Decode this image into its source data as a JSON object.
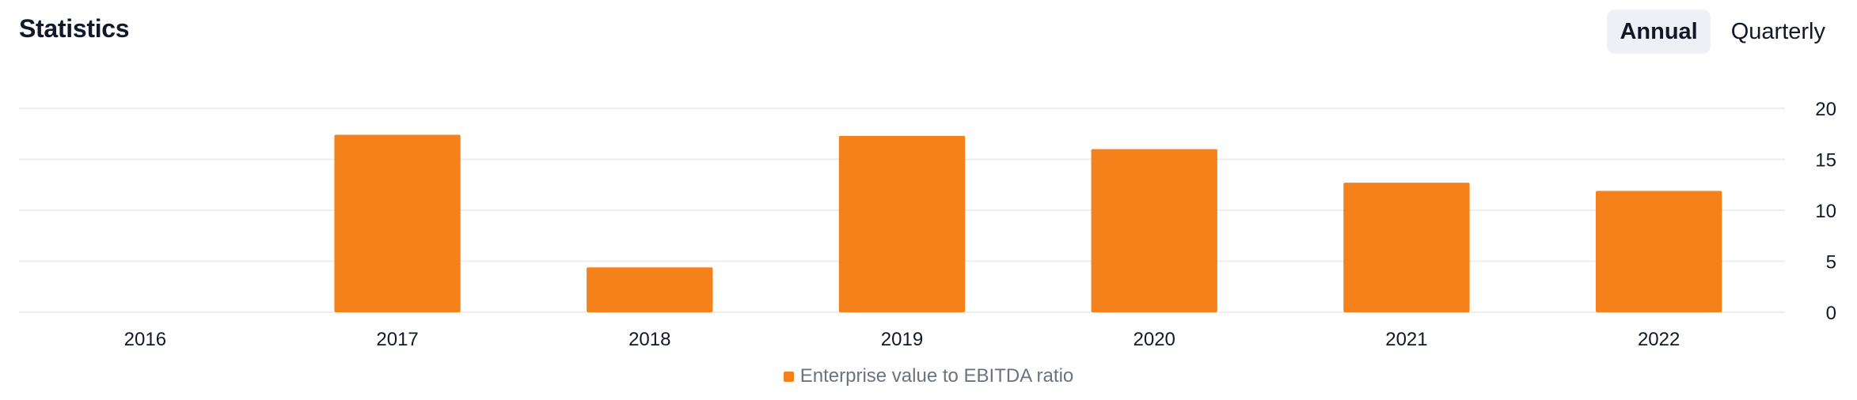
{
  "header": {
    "title": "Statistics",
    "toggle": {
      "annual_label": "Annual",
      "quarterly_label": "Quarterly",
      "selected": "Annual"
    }
  },
  "colors": {
    "bar": "#f5811a",
    "grid": "#eeeeee",
    "toggle_active_bg": "#eef0f6"
  },
  "chart_data": {
    "type": "bar",
    "title": "",
    "xlabel": "",
    "ylabel": "",
    "categories": [
      "2016",
      "2017",
      "2018",
      "2019",
      "2020",
      "2021",
      "2022"
    ],
    "series": [
      {
        "name": "Enterprise value to EBITDA ratio",
        "values": [
          null,
          17.4,
          4.4,
          17.3,
          16.0,
          12.7,
          11.9
        ]
      }
    ],
    "ylim": [
      0,
      20
    ],
    "yticks": [
      0,
      5,
      10,
      15,
      20
    ],
    "y_axis_side": "right",
    "grid": true,
    "legend_position": "bottom-center"
  }
}
